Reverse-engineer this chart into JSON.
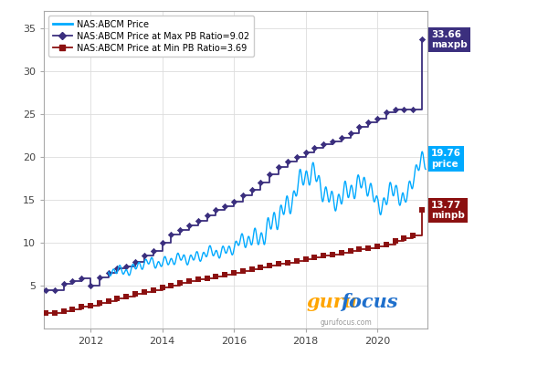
{
  "xlim": [
    2010.7,
    2021.4
  ],
  "ylim": [
    0,
    37
  ],
  "yticks": [
    5,
    10,
    15,
    20,
    25,
    30,
    35
  ],
  "xticks": [
    2012,
    2014,
    2016,
    2018,
    2020
  ],
  "price_color": "#00AAFF",
  "maxpb_color": "#3B2F7E",
  "minpb_color": "#8B1010",
  "bg_color": "#FFFFFF",
  "grid_color": "#DDDDDD",
  "legend_price": "NAS:ABCM Price",
  "legend_maxpb": "NAS:ABCM Price at Max PB Ratio=9.02",
  "legend_minpb": "NAS:ABCM Price at Min PB Ratio=3.69",
  "label_price_val": "19.76",
  "label_price_lbl": "price",
  "label_maxpb_val": "33.66",
  "label_maxpb_lbl": "maxpb",
  "label_minpb_val": "13.77",
  "label_minpb_lbl": "minpb",
  "gurufocus_orange": "#FFA500",
  "gurufocus_blue": "#1E6FCC",
  "maxpb_steps": [
    [
      2010.75,
      4.5
    ],
    [
      2011.0,
      4.5
    ],
    [
      2011.25,
      5.2
    ],
    [
      2011.5,
      5.5
    ],
    [
      2011.75,
      5.8
    ],
    [
      2012.0,
      5.0
    ],
    [
      2012.25,
      6.0
    ],
    [
      2012.5,
      6.5
    ],
    [
      2012.75,
      7.0
    ],
    [
      2013.0,
      7.2
    ],
    [
      2013.25,
      7.8
    ],
    [
      2013.5,
      8.5
    ],
    [
      2013.75,
      9.0
    ],
    [
      2014.0,
      10.0
    ],
    [
      2014.25,
      11.0
    ],
    [
      2014.5,
      11.5
    ],
    [
      2014.75,
      12.0
    ],
    [
      2015.0,
      12.5
    ],
    [
      2015.25,
      13.2
    ],
    [
      2015.5,
      13.8
    ],
    [
      2015.75,
      14.2
    ],
    [
      2016.0,
      14.8
    ],
    [
      2016.25,
      15.5
    ],
    [
      2016.5,
      16.2
    ],
    [
      2016.75,
      17.0
    ],
    [
      2017.0,
      18.0
    ],
    [
      2017.25,
      18.8
    ],
    [
      2017.5,
      19.5
    ],
    [
      2017.75,
      20.0
    ],
    [
      2018.0,
      20.5
    ],
    [
      2018.25,
      21.0
    ],
    [
      2018.5,
      21.5
    ],
    [
      2018.75,
      21.8
    ],
    [
      2019.0,
      22.2
    ],
    [
      2019.25,
      22.8
    ],
    [
      2019.5,
      23.5
    ],
    [
      2019.75,
      24.0
    ],
    [
      2020.0,
      24.5
    ],
    [
      2020.25,
      25.2
    ],
    [
      2020.5,
      25.5
    ],
    [
      2020.75,
      25.5
    ],
    [
      2021.0,
      25.5
    ],
    [
      2021.25,
      33.66
    ]
  ],
  "minpb_steps": [
    [
      2010.75,
      1.8
    ],
    [
      2011.0,
      1.8
    ],
    [
      2011.25,
      2.0
    ],
    [
      2011.5,
      2.2
    ],
    [
      2011.75,
      2.5
    ],
    [
      2012.0,
      2.7
    ],
    [
      2012.25,
      3.0
    ],
    [
      2012.5,
      3.2
    ],
    [
      2012.75,
      3.5
    ],
    [
      2013.0,
      3.7
    ],
    [
      2013.25,
      4.0
    ],
    [
      2013.5,
      4.2
    ],
    [
      2013.75,
      4.5
    ],
    [
      2014.0,
      4.8
    ],
    [
      2014.25,
      5.0
    ],
    [
      2014.5,
      5.3
    ],
    [
      2014.75,
      5.5
    ],
    [
      2015.0,
      5.7
    ],
    [
      2015.25,
      5.9
    ],
    [
      2015.5,
      6.1
    ],
    [
      2015.75,
      6.3
    ],
    [
      2016.0,
      6.5
    ],
    [
      2016.25,
      6.7
    ],
    [
      2016.5,
      6.9
    ],
    [
      2016.75,
      7.1
    ],
    [
      2017.0,
      7.3
    ],
    [
      2017.25,
      7.5
    ],
    [
      2017.5,
      7.7
    ],
    [
      2017.75,
      7.9
    ],
    [
      2018.0,
      8.1
    ],
    [
      2018.25,
      8.3
    ],
    [
      2018.5,
      8.5
    ],
    [
      2018.75,
      8.6
    ],
    [
      2019.0,
      8.8
    ],
    [
      2019.25,
      9.0
    ],
    [
      2019.5,
      9.2
    ],
    [
      2019.75,
      9.4
    ],
    [
      2020.0,
      9.6
    ],
    [
      2020.25,
      9.8
    ],
    [
      2020.5,
      10.2
    ],
    [
      2020.75,
      10.5
    ],
    [
      2021.0,
      10.8
    ],
    [
      2021.25,
      13.77
    ]
  ]
}
